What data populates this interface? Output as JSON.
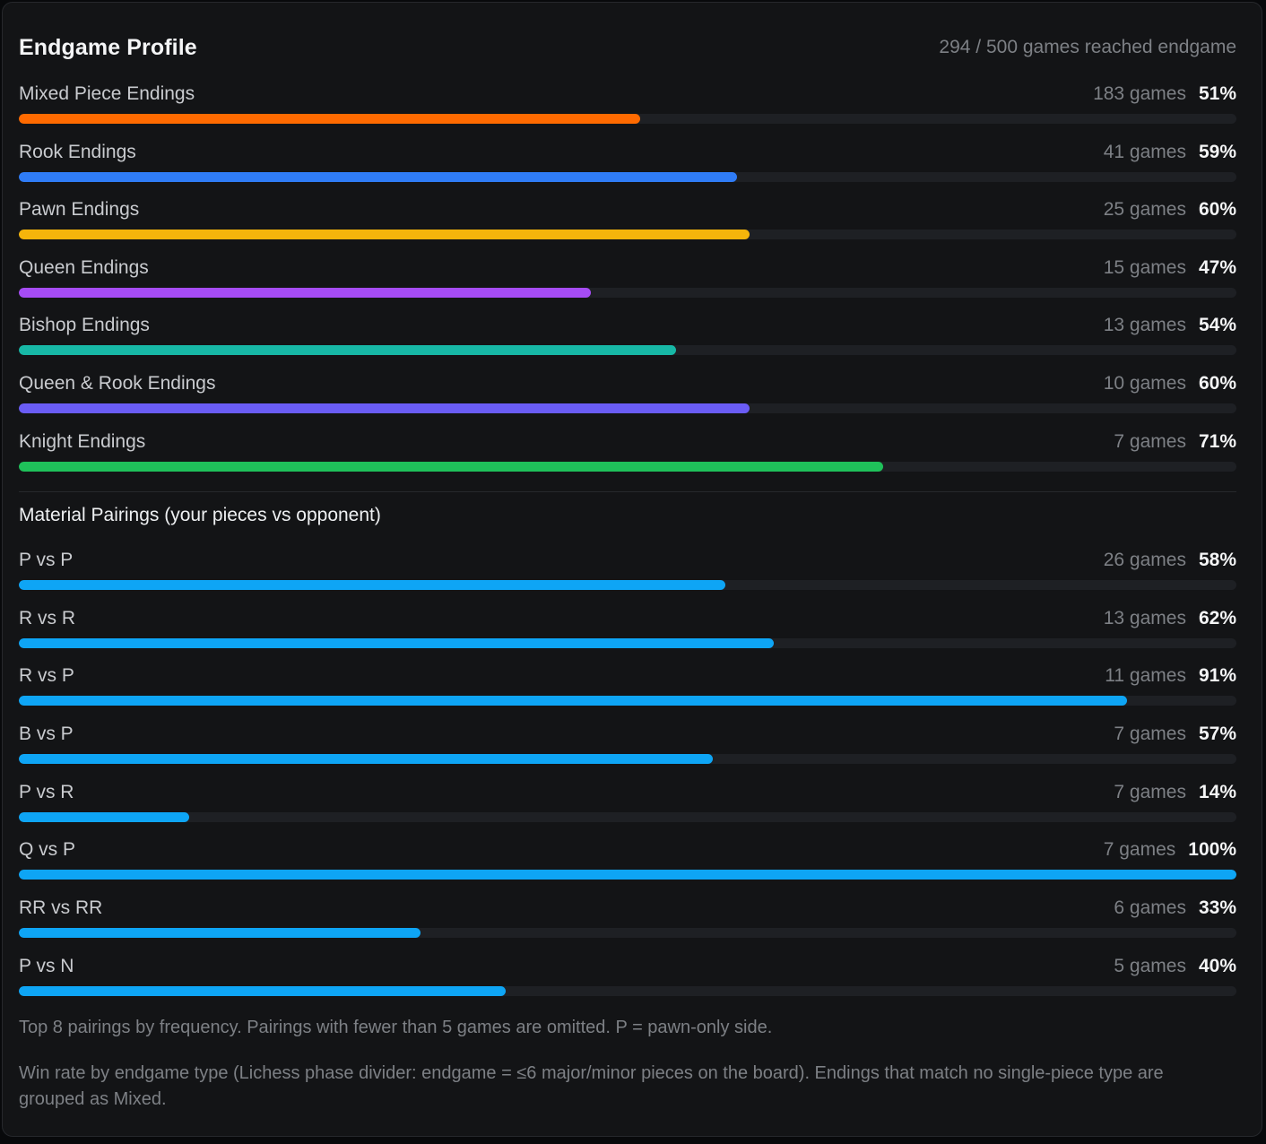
{
  "header": {
    "title": "Endgame Profile",
    "summary": "294 / 500 games reached endgame"
  },
  "endings": [
    {
      "label": "Mixed Piece Endings",
      "games": "183 games",
      "win_rate": "51%",
      "value": 51,
      "color": "#ff6a00"
    },
    {
      "label": "Rook Endings",
      "games": "41 games",
      "win_rate": "59%",
      "value": 59,
      "color": "#2f7cf6"
    },
    {
      "label": "Pawn Endings",
      "games": "25 games",
      "win_rate": "60%",
      "value": 60,
      "color": "#f5b50b"
    },
    {
      "label": "Queen Endings",
      "games": "15 games",
      "win_rate": "47%",
      "value": 47,
      "color": "#a64cf5"
    },
    {
      "label": "Bishop Endings",
      "games": "13 games",
      "win_rate": "54%",
      "value": 54,
      "color": "#17b8a6"
    },
    {
      "label": "Queen & Rook Endings",
      "games": "10 games",
      "win_rate": "60%",
      "value": 60,
      "color": "#6a5cf5"
    },
    {
      "label": "Knight Endings",
      "games": "7 games",
      "win_rate": "71%",
      "value": 71,
      "color": "#1fc15a"
    }
  ],
  "pairings": {
    "title": "Material Pairings (your pieces vs opponent)",
    "color": "#0ea5f5",
    "items": [
      {
        "label": "P vs P",
        "games": "26 games",
        "win_rate": "58%",
        "value": 58
      },
      {
        "label": "R vs R",
        "games": "13 games",
        "win_rate": "62%",
        "value": 62
      },
      {
        "label": "R vs P",
        "games": "11 games",
        "win_rate": "91%",
        "value": 91
      },
      {
        "label": "B vs P",
        "games": "7 games",
        "win_rate": "57%",
        "value": 57
      },
      {
        "label": "P vs R",
        "games": "7 games",
        "win_rate": "14%",
        "value": 14
      },
      {
        "label": "Q vs P",
        "games": "7 games",
        "win_rate": "100%",
        "value": 100
      },
      {
        "label": "RR vs RR",
        "games": "6 games",
        "win_rate": "33%",
        "value": 33
      },
      {
        "label": "P vs N",
        "games": "5 games",
        "win_rate": "40%",
        "value": 40
      }
    ]
  },
  "notes": {
    "pairings_note": "Top 8 pairings by frequency. Pairings with fewer than 5 games are omitted. P = pawn-only side.",
    "endings_note": "Win rate by endgame type (Lichess phase divider: endgame = ≤6 major/minor pieces on the board). Endings that match no single-piece type are grouped as Mixed."
  }
}
